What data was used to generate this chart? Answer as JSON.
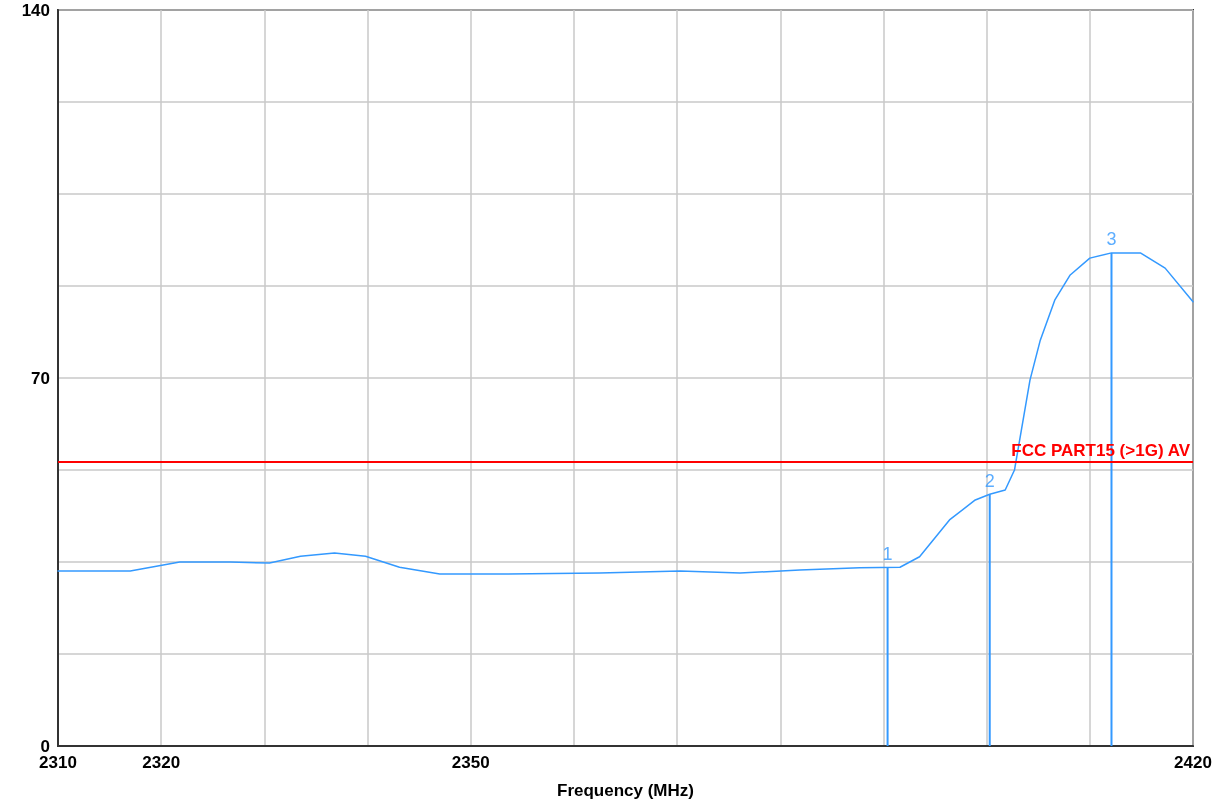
{
  "chart_data": {
    "type": "line",
    "xlabel": "Frequency (MHz)",
    "xlim": [
      2310,
      2420
    ],
    "xticks": [
      2310,
      2320,
      {
        "value": 2330,
        "label": null
      },
      {
        "value": 2340,
        "label": null
      },
      2350,
      {
        "value": 2360,
        "label": null
      },
      {
        "value": 2370,
        "label": null
      },
      {
        "value": 2380,
        "label": null
      },
      {
        "value": 2390,
        "label": null
      },
      {
        "value": 2400,
        "label": null
      },
      {
        "value": 2410,
        "label": null
      },
      2420
    ],
    "ylim": [
      0,
      140
    ],
    "yticks": [
      0,
      {
        "value": 17.5,
        "label": null
      },
      {
        "value": 35,
        "label": null
      },
      {
        "value": 52.5,
        "label": null
      },
      70,
      {
        "value": 87.5,
        "label": null
      },
      {
        "value": 105,
        "label": null
      },
      {
        "value": 122.5,
        "label": null
      },
      140
    ],
    "grid": true,
    "marker": "none",
    "line_style": "solid",
    "series": [
      {
        "color": "#3399ff",
        "x": [
          2310,
          2317,
          2321.8,
          2326.7,
          2330.5,
          2333.5,
          2336.8,
          2339.8,
          2343.1,
          2347,
          2352.8,
          2362.5,
          2370.3,
          2376.1,
          2381.9,
          2387.7,
          2391.6,
          2393.5,
          2396.4,
          2398.9,
          2400.3,
          2401.8,
          2402.7,
          2403.2,
          2404.2,
          2405.2,
          2406.6,
          2408.1,
          2410,
          2412.1,
          2414.9,
          2417.3,
          2420
        ],
        "values": [
          33.3,
          33.3,
          35,
          35,
          34.8,
          36.1,
          36.7,
          36.1,
          34,
          32.7,
          32.7,
          32.9,
          33.3,
          32.9,
          33.5,
          33.9,
          34,
          36,
          43,
          46.8,
          47.9,
          48.7,
          52.5,
          58.2,
          69.6,
          77.2,
          84.8,
          89.6,
          92.8,
          93.8,
          93.8,
          90.9,
          84.5
        ]
      },
      {
        "type": "bar",
        "color": "#3399ff",
        "x": [
          2390.4,
          2400.3,
          2412.1
        ],
        "values": [
          34,
          47.9,
          93.8
        ]
      }
    ],
    "ref_lines": [
      {
        "axis": "y",
        "value": 54,
        "label": "FCC PART15 (>1G) AV",
        "color": "#ff0000"
      }
    ],
    "annotations": [
      {
        "text": "1",
        "x": 2390.4,
        "y": 34
      },
      {
        "text": "2",
        "x": 2400.3,
        "y": 47.9
      },
      {
        "text": "3",
        "x": 2412.1,
        "y": 93.8
      }
    ]
  }
}
